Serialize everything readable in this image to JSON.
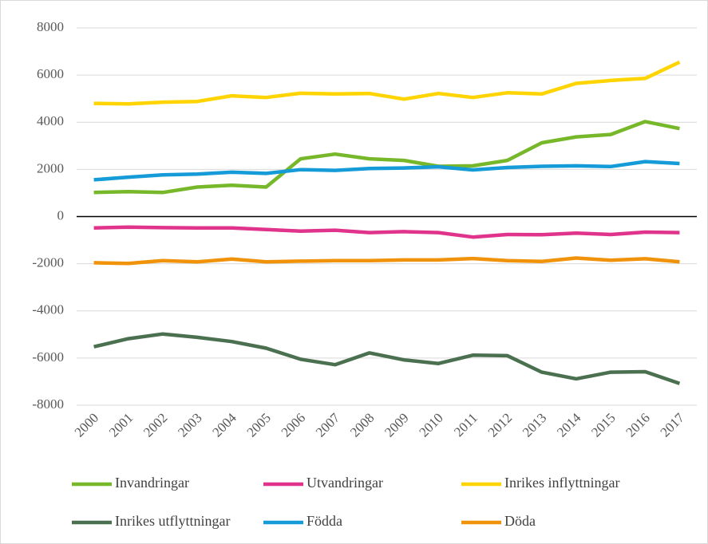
{
  "chart_data": {
    "type": "line",
    "categories": [
      "2000",
      "2001",
      "2002",
      "2003",
      "2004",
      "2005",
      "2006",
      "2007",
      "2008",
      "2009",
      "2010",
      "2011",
      "2012",
      "2013",
      "2014",
      "2015",
      "2016",
      "2017"
    ],
    "series": [
      {
        "name": "Invandringar",
        "color": "#77b82a",
        "values": [
          1020,
          1060,
          1020,
          1250,
          1330,
          1250,
          2450,
          2650,
          2450,
          2380,
          2130,
          2150,
          2380,
          3130,
          3380,
          3480,
          4030,
          3730
        ]
      },
      {
        "name": "Utvandringar",
        "color": "#e0338c",
        "values": [
          -480,
          -450,
          -470,
          -480,
          -480,
          -550,
          -620,
          -580,
          -680,
          -640,
          -680,
          -870,
          -760,
          -770,
          -700,
          -760,
          -660,
          -680
        ]
      },
      {
        "name": "Inrikes inflyttningar",
        "color": "#ffd400",
        "values": [
          4800,
          4780,
          4850,
          4880,
          5120,
          5050,
          5230,
          5200,
          5220,
          4980,
          5220,
          5050,
          5250,
          5200,
          5650,
          5770,
          5860,
          6550
        ]
      },
      {
        "name": "Inrikes utflyttningar",
        "color": "#4a7050",
        "values": [
          -5520,
          -5180,
          -4980,
          -5120,
          -5300,
          -5580,
          -6050,
          -6280,
          -5780,
          -6080,
          -6230,
          -5880,
          -5900,
          -6600,
          -6880,
          -6600,
          -6580,
          -7080
        ]
      },
      {
        "name": "Födda",
        "color": "#159bd7",
        "values": [
          1560,
          1670,
          1770,
          1800,
          1880,
          1830,
          1990,
          1960,
          2040,
          2060,
          2110,
          1980,
          2080,
          2130,
          2150,
          2120,
          2330,
          2250
        ]
      },
      {
        "name": "Döda",
        "color": "#f0920a",
        "values": [
          -1960,
          -1990,
          -1870,
          -1920,
          -1800,
          -1920,
          -1890,
          -1870,
          -1870,
          -1840,
          -1840,
          -1780,
          -1870,
          -1900,
          -1760,
          -1850,
          -1790,
          -1920
        ]
      }
    ],
    "ylim": [
      -8000,
      8000
    ],
    "yticks": [
      -8000,
      -6000,
      -4000,
      -2000,
      0,
      2000,
      4000,
      6000,
      8000
    ],
    "grid": true,
    "legend": "bottom"
  }
}
